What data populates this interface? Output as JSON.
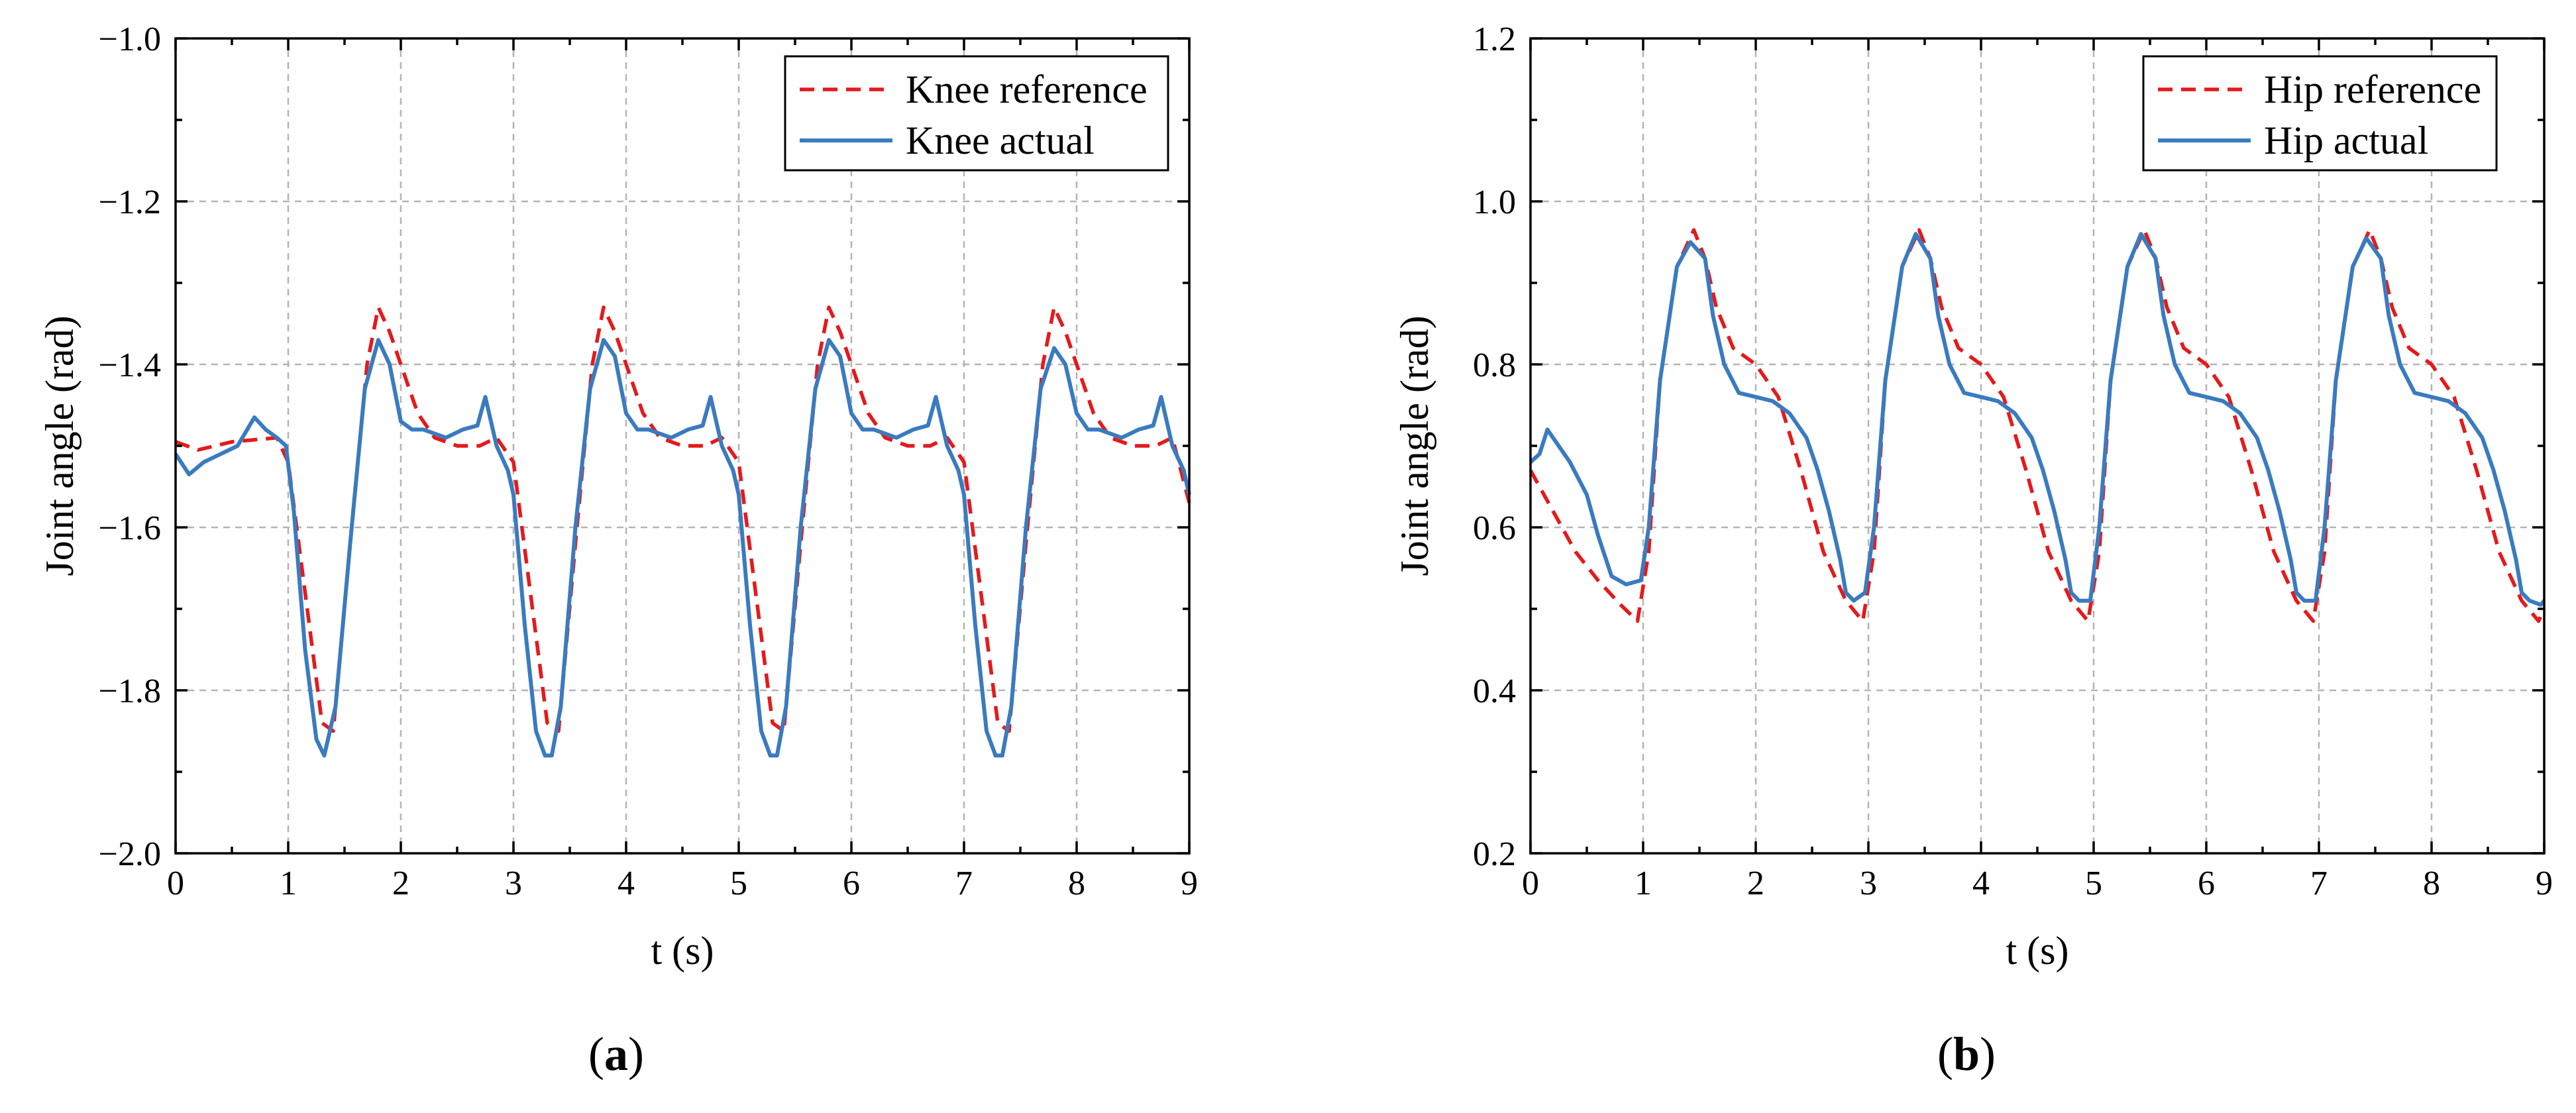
{
  "figure": {
    "colors": {
      "reference": "#e41a1c",
      "actual": "#3a7bbf"
    }
  },
  "chart_data": [
    {
      "type": "line",
      "panel_label": "a",
      "xlabel": "t (s)",
      "ylabel": "Joint angle (rad)",
      "xlim": [
        0,
        9
      ],
      "ylim": [
        -2.0,
        -1.0
      ],
      "xticks": [
        0,
        1,
        2,
        3,
        4,
        5,
        6,
        7,
        8,
        9
      ],
      "xtick_labels": [
        "0",
        "1",
        "2",
        "3",
        "4",
        "5",
        "6",
        "7",
        "8",
        "9"
      ],
      "yticks": [
        -2.0,
        -1.8,
        -1.6,
        -1.4,
        -1.2,
        -1.0
      ],
      "ytick_labels": [
        "−2.0",
        "−1.8",
        "−1.6",
        "−1.4",
        "−1.2",
        "−1.0"
      ],
      "grid": true,
      "legend_position": "top-right",
      "series": [
        {
          "name": "Knee reference",
          "style": "dashed",
          "color": "#e41a1c",
          "x": [
            0,
            0.2,
            0.5,
            0.9,
            1.0,
            1.15,
            1.3,
            1.4,
            1.55,
            1.7,
            1.8,
            1.9,
            2.0,
            2.15,
            2.3,
            2.5,
            2.7,
            2.85,
            3.0,
            3.15,
            3.3,
            3.4,
            3.55,
            3.7,
            3.8,
            3.9,
            4.0,
            4.15,
            4.3,
            4.5,
            4.7,
            4.85,
            5.0,
            5.15,
            5.3,
            5.4,
            5.55,
            5.7,
            5.8,
            5.9,
            6.0,
            6.15,
            6.3,
            6.5,
            6.7,
            6.85,
            7.0,
            7.15,
            7.3,
            7.4,
            7.55,
            7.7,
            7.8,
            7.9,
            8.0,
            8.15,
            8.3,
            8.5,
            8.7,
            8.85,
            9.0
          ],
          "y": [
            -1.495,
            -1.505,
            -1.495,
            -1.49,
            -1.52,
            -1.68,
            -1.84,
            -1.85,
            -1.62,
            -1.4,
            -1.33,
            -1.36,
            -1.4,
            -1.46,
            -1.49,
            -1.5,
            -1.5,
            -1.49,
            -1.52,
            -1.68,
            -1.84,
            -1.85,
            -1.62,
            -1.4,
            -1.33,
            -1.36,
            -1.4,
            -1.46,
            -1.49,
            -1.5,
            -1.5,
            -1.49,
            -1.52,
            -1.68,
            -1.84,
            -1.85,
            -1.62,
            -1.4,
            -1.33,
            -1.36,
            -1.4,
            -1.46,
            -1.49,
            -1.5,
            -1.5,
            -1.49,
            -1.52,
            -1.68,
            -1.84,
            -1.85,
            -1.62,
            -1.4,
            -1.33,
            -1.36,
            -1.4,
            -1.46,
            -1.49,
            -1.5,
            -1.5,
            -1.49,
            -1.57
          ]
        },
        {
          "name": "Knee actual",
          "style": "solid",
          "color": "#3a7bbf",
          "x": [
            0,
            0.12,
            0.25,
            0.4,
            0.55,
            0.7,
            0.8,
            0.9,
            0.98,
            1.05,
            1.15,
            1.25,
            1.32,
            1.42,
            1.55,
            1.68,
            1.8,
            1.9,
            2.0,
            2.1,
            2.2,
            2.4,
            2.55,
            2.68,
            2.75,
            2.85,
            2.95,
            3.0,
            3.1,
            3.2,
            3.28,
            3.34,
            3.42,
            3.55,
            3.68,
            3.8,
            3.9,
            4.0,
            4.1,
            4.2,
            4.4,
            4.55,
            4.68,
            4.75,
            4.85,
            4.95,
            5.0,
            5.1,
            5.2,
            5.28,
            5.34,
            5.42,
            5.55,
            5.68,
            5.8,
            5.9,
            6.0,
            6.1,
            6.2,
            6.4,
            6.55,
            6.68,
            6.75,
            6.85,
            6.95,
            7.0,
            7.1,
            7.2,
            7.28,
            7.34,
            7.42,
            7.55,
            7.68,
            7.8,
            7.9,
            8.0,
            8.1,
            8.2,
            8.4,
            8.55,
            8.68,
            8.75,
            8.85,
            8.95,
            9.0
          ],
          "y": [
            -1.51,
            -1.535,
            -1.52,
            -1.51,
            -1.5,
            -1.465,
            -1.48,
            -1.49,
            -1.5,
            -1.58,
            -1.75,
            -1.86,
            -1.88,
            -1.82,
            -1.62,
            -1.43,
            -1.37,
            -1.4,
            -1.47,
            -1.48,
            -1.48,
            -1.49,
            -1.48,
            -1.475,
            -1.44,
            -1.5,
            -1.53,
            -1.56,
            -1.72,
            -1.85,
            -1.88,
            -1.88,
            -1.82,
            -1.6,
            -1.43,
            -1.37,
            -1.39,
            -1.46,
            -1.48,
            -1.48,
            -1.49,
            -1.48,
            -1.475,
            -1.44,
            -1.5,
            -1.53,
            -1.56,
            -1.72,
            -1.85,
            -1.88,
            -1.88,
            -1.82,
            -1.6,
            -1.43,
            -1.37,
            -1.39,
            -1.46,
            -1.48,
            -1.48,
            -1.49,
            -1.48,
            -1.475,
            -1.44,
            -1.5,
            -1.53,
            -1.56,
            -1.72,
            -1.85,
            -1.88,
            -1.88,
            -1.82,
            -1.6,
            -1.43,
            -1.38,
            -1.4,
            -1.46,
            -1.48,
            -1.48,
            -1.49,
            -1.48,
            -1.475,
            -1.44,
            -1.5,
            -1.53,
            -1.56
          ]
        }
      ]
    },
    {
      "type": "line",
      "panel_label": "b",
      "xlabel": "t (s)",
      "ylabel": "Joint angle (rad)",
      "xlim": [
        0,
        9
      ],
      "ylim": [
        0.2,
        1.2
      ],
      "xticks": [
        0,
        1,
        2,
        3,
        4,
        5,
        6,
        7,
        8,
        9
      ],
      "xtick_labels": [
        "0",
        "1",
        "2",
        "3",
        "4",
        "5",
        "6",
        "7",
        "8",
        "9"
      ],
      "yticks": [
        0.2,
        0.4,
        0.6,
        0.8,
        1.0,
        1.2
      ],
      "ytick_labels": [
        "0.2",
        "0.4",
        "0.6",
        "0.8",
        "1.0",
        "1.2"
      ],
      "grid": true,
      "legend_position": "top-right",
      "series": [
        {
          "name": "Hip reference",
          "style": "dashed",
          "color": "#e41a1c",
          "x": [
            0,
            0.2,
            0.4,
            0.6,
            0.8,
            0.95,
            1.05,
            1.15,
            1.3,
            1.45,
            1.55,
            1.65,
            1.8,
            2.0,
            2.2,
            2.4,
            2.6,
            2.8,
            2.95,
            3.05,
            3.15,
            3.3,
            3.45,
            3.55,
            3.65,
            3.8,
            4.0,
            4.2,
            4.4,
            4.6,
            4.8,
            4.95,
            5.05,
            5.15,
            5.3,
            5.45,
            5.55,
            5.65,
            5.8,
            6.0,
            6.2,
            6.4,
            6.6,
            6.8,
            6.95,
            7.05,
            7.15,
            7.3,
            7.45,
            7.55,
            7.65,
            7.8,
            8.0,
            8.2,
            8.4,
            8.6,
            8.8,
            8.95,
            9.0
          ],
          "y": [
            0.67,
            0.62,
            0.57,
            0.535,
            0.505,
            0.485,
            0.57,
            0.78,
            0.92,
            0.965,
            0.93,
            0.87,
            0.82,
            0.8,
            0.76,
            0.67,
            0.57,
            0.51,
            0.485,
            0.57,
            0.78,
            0.92,
            0.965,
            0.93,
            0.87,
            0.82,
            0.8,
            0.76,
            0.67,
            0.57,
            0.51,
            0.485,
            0.57,
            0.78,
            0.92,
            0.965,
            0.93,
            0.87,
            0.82,
            0.8,
            0.76,
            0.67,
            0.57,
            0.51,
            0.485,
            0.57,
            0.78,
            0.92,
            0.965,
            0.93,
            0.87,
            0.82,
            0.8,
            0.76,
            0.67,
            0.57,
            0.51,
            0.485,
            0.5
          ]
        },
        {
          "name": "Hip actual",
          "style": "solid",
          "color": "#3a7bbf",
          "x": [
            0,
            0.08,
            0.15,
            0.25,
            0.35,
            0.5,
            0.6,
            0.72,
            0.85,
            0.98,
            1.05,
            1.15,
            1.3,
            1.42,
            1.55,
            1.62,
            1.72,
            1.85,
            2.0,
            2.15,
            2.3,
            2.45,
            2.55,
            2.65,
            2.75,
            2.8,
            2.87,
            2.97,
            3.05,
            3.15,
            3.3,
            3.42,
            3.55,
            3.62,
            3.72,
            3.85,
            4.0,
            4.15,
            4.3,
            4.45,
            4.55,
            4.65,
            4.75,
            4.8,
            4.87,
            4.97,
            5.05,
            5.15,
            5.3,
            5.42,
            5.55,
            5.62,
            5.72,
            5.85,
            6.0,
            6.15,
            6.3,
            6.45,
            6.55,
            6.65,
            6.75,
            6.8,
            6.87,
            6.97,
            7.05,
            7.15,
            7.3,
            7.42,
            7.55,
            7.62,
            7.72,
            7.85,
            8.0,
            8.15,
            8.3,
            8.45,
            8.55,
            8.65,
            8.75,
            8.8,
            8.87,
            8.97,
            9.0
          ],
          "y": [
            0.68,
            0.69,
            0.72,
            0.7,
            0.68,
            0.64,
            0.59,
            0.54,
            0.53,
            0.535,
            0.6,
            0.78,
            0.92,
            0.95,
            0.93,
            0.86,
            0.8,
            0.765,
            0.76,
            0.755,
            0.74,
            0.71,
            0.67,
            0.62,
            0.56,
            0.52,
            0.51,
            0.52,
            0.6,
            0.78,
            0.92,
            0.96,
            0.93,
            0.86,
            0.8,
            0.765,
            0.76,
            0.755,
            0.74,
            0.71,
            0.67,
            0.62,
            0.56,
            0.52,
            0.51,
            0.51,
            0.6,
            0.78,
            0.92,
            0.96,
            0.93,
            0.86,
            0.8,
            0.765,
            0.76,
            0.755,
            0.74,
            0.71,
            0.67,
            0.62,
            0.56,
            0.52,
            0.51,
            0.51,
            0.6,
            0.78,
            0.92,
            0.955,
            0.93,
            0.86,
            0.8,
            0.765,
            0.76,
            0.755,
            0.74,
            0.71,
            0.67,
            0.62,
            0.56,
            0.52,
            0.51,
            0.505,
            0.51
          ]
        }
      ]
    }
  ]
}
